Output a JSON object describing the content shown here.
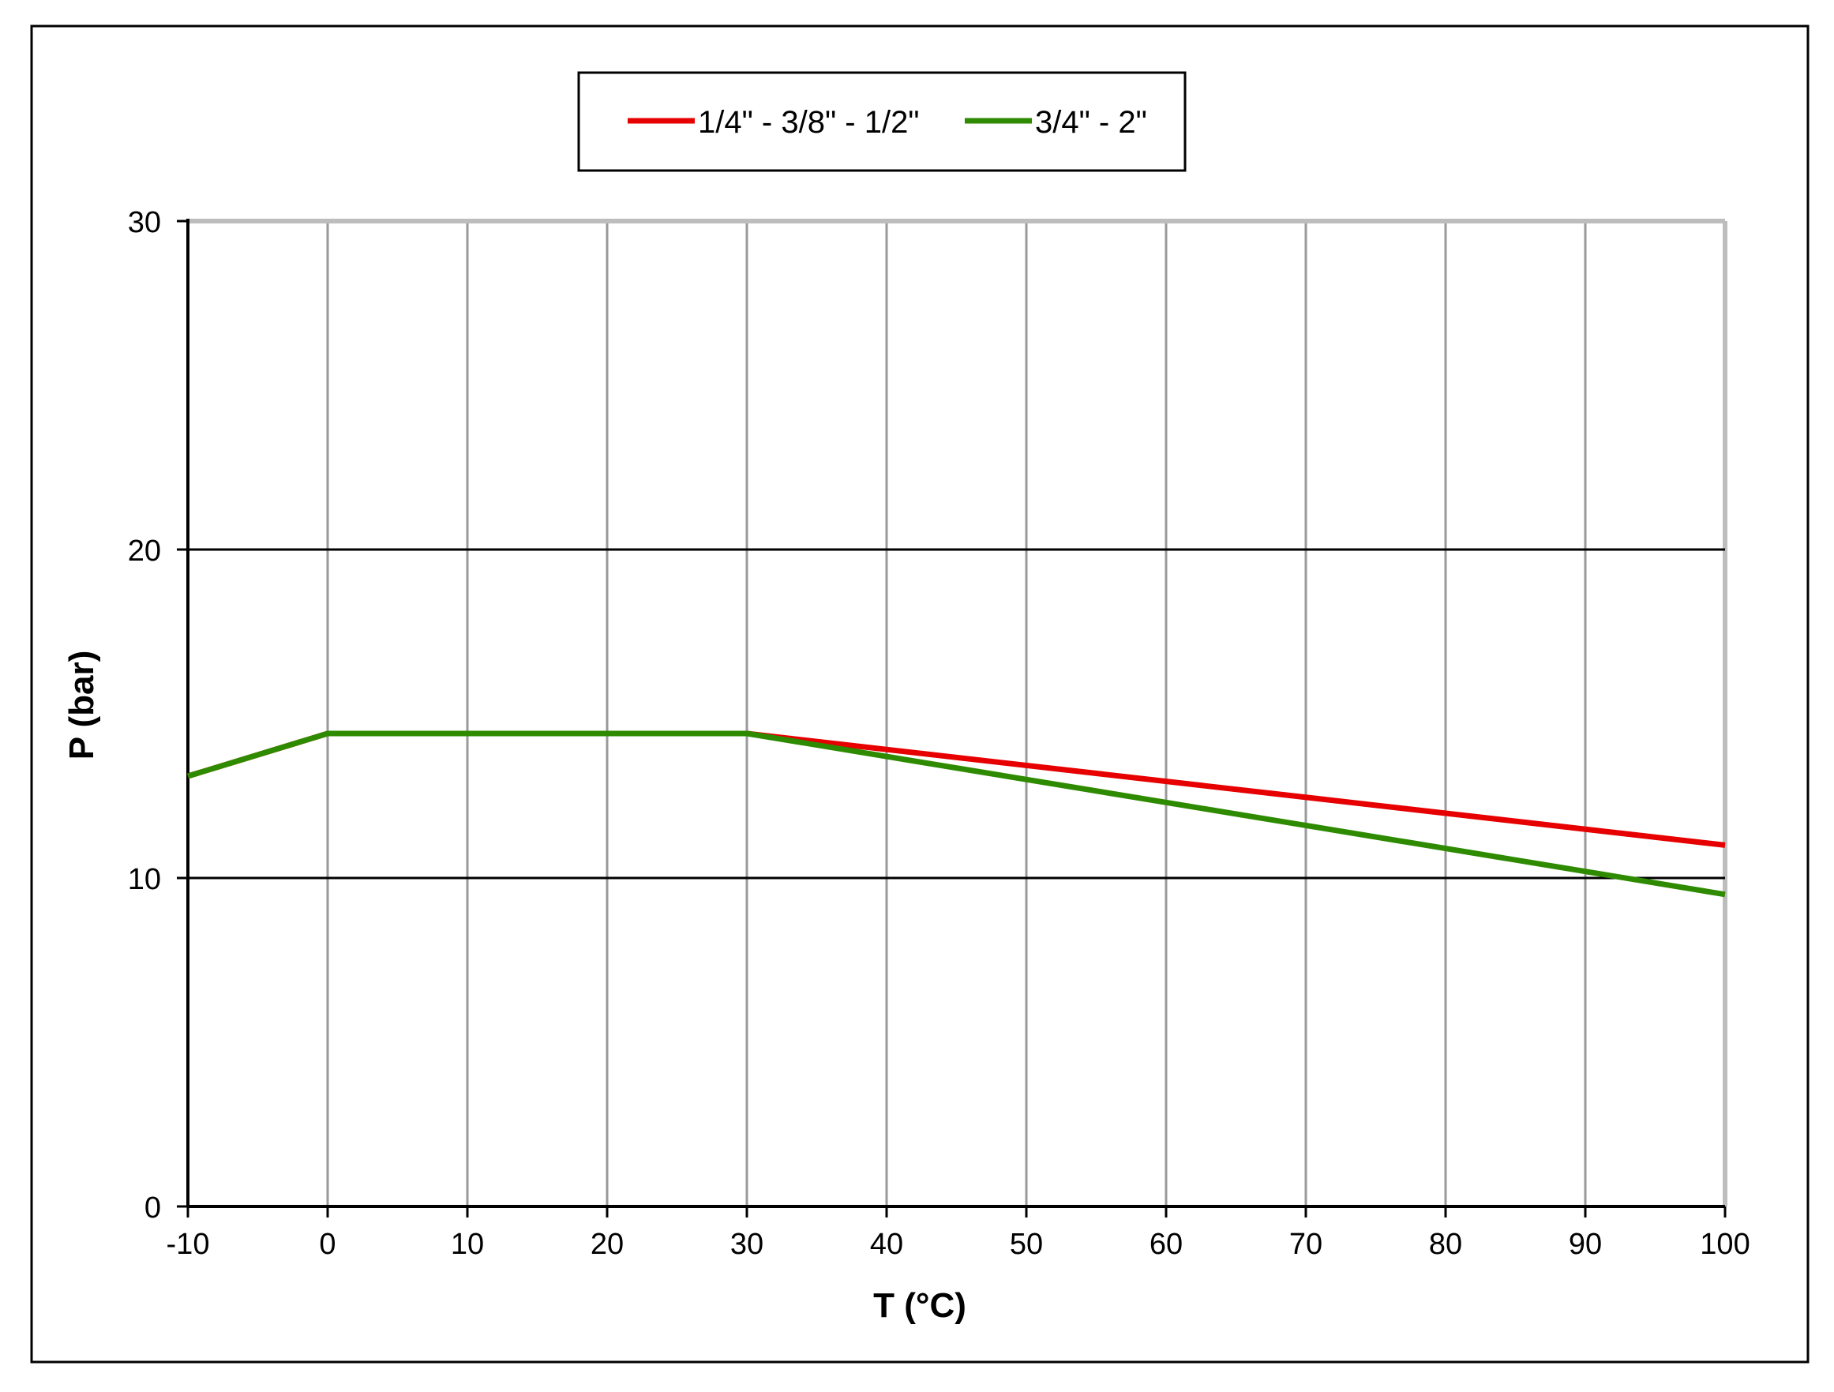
{
  "chart_data": {
    "type": "line",
    "xlabel": "T (°C)",
    "ylabel": "P (bar)",
    "xlim": [
      -10,
      100
    ],
    "ylim": [
      0,
      30
    ],
    "x_ticks": [
      -10,
      0,
      10,
      20,
      30,
      40,
      50,
      60,
      70,
      80,
      90,
      100
    ],
    "y_ticks": [
      0,
      10,
      20,
      30
    ],
    "grid": {
      "vertical": true,
      "horizontal_major": [
        10,
        20
      ]
    },
    "legend_position": "top-center",
    "series": [
      {
        "name": "1/4\" - 3/8\" - 1/2\"",
        "color": "#e60000",
        "x": [
          -10,
          0,
          30,
          100
        ],
        "y": [
          13.1,
          14.4,
          14.4,
          11.0
        ]
      },
      {
        "name": "3/4\" - 2\"",
        "color": "#2e8b00",
        "x": [
          -10,
          0,
          30,
          100
        ],
        "y": [
          13.1,
          14.4,
          14.4,
          9.5
        ]
      }
    ]
  }
}
